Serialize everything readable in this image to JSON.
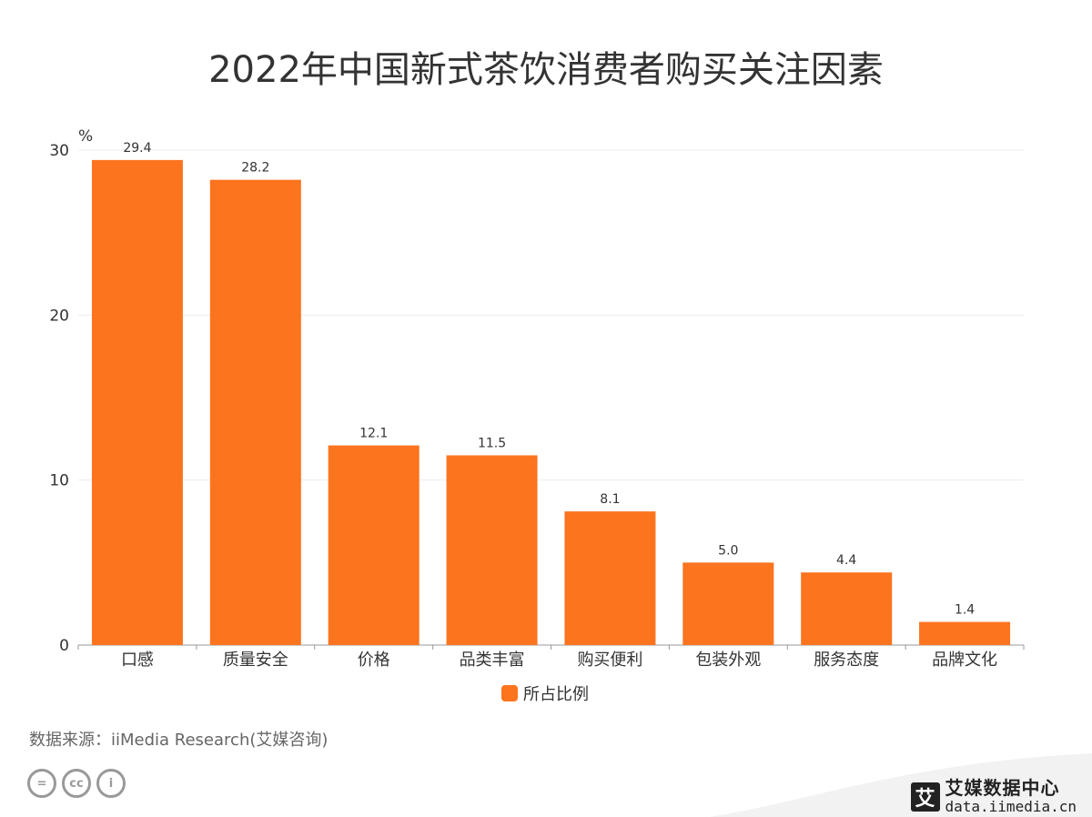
{
  "title": "2022年中国新式茶饮消费者购买关注因素",
  "source": "数据来源：iiMedia Research(艾媒咨询)",
  "brand": {
    "logo_char": "艾",
    "name": "艾媒数据中心",
    "url": "data.iimedia.cn"
  },
  "cc_icons": [
    "=",
    "cc",
    "i"
  ],
  "colors": {
    "bar": "#FC741E",
    "grid": "#EEEEEE",
    "axis": "#999999"
  },
  "chart_data": {
    "type": "bar",
    "title": "2022年中国新式茶饮消费者购买关注因素",
    "ylabel": "%",
    "ylim": [
      0,
      30
    ],
    "yticks": [
      0,
      10,
      20,
      30
    ],
    "categories": [
      "口感",
      "质量安全",
      "价格",
      "品类丰富",
      "购买便利",
      "包装外观",
      "服务态度",
      "品牌文化"
    ],
    "series": [
      {
        "name": "所占比例",
        "values": [
          29.4,
          28.2,
          12.1,
          11.5,
          8.1,
          5.0,
          4.4,
          1.4
        ]
      }
    ],
    "value_labels": [
      "29.4",
      "28.2",
      "12.1",
      "11.5",
      "8.1",
      "5.0",
      "4.4",
      "1.4"
    ],
    "legend": "bottom-center",
    "grid": true
  }
}
